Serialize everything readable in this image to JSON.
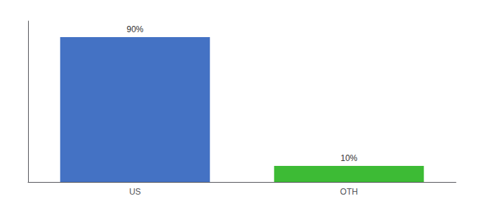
{
  "chart_data": {
    "type": "bar",
    "categories": [
      "US",
      "OTH"
    ],
    "values": [
      90,
      10
    ],
    "value_labels": [
      "90%",
      "10%"
    ],
    "colors": [
      "#4472c4",
      "#3dbb35"
    ],
    "ylim": [
      0,
      100
    ],
    "data_labels": true,
    "tick_labels": "x",
    "grid": false
  }
}
